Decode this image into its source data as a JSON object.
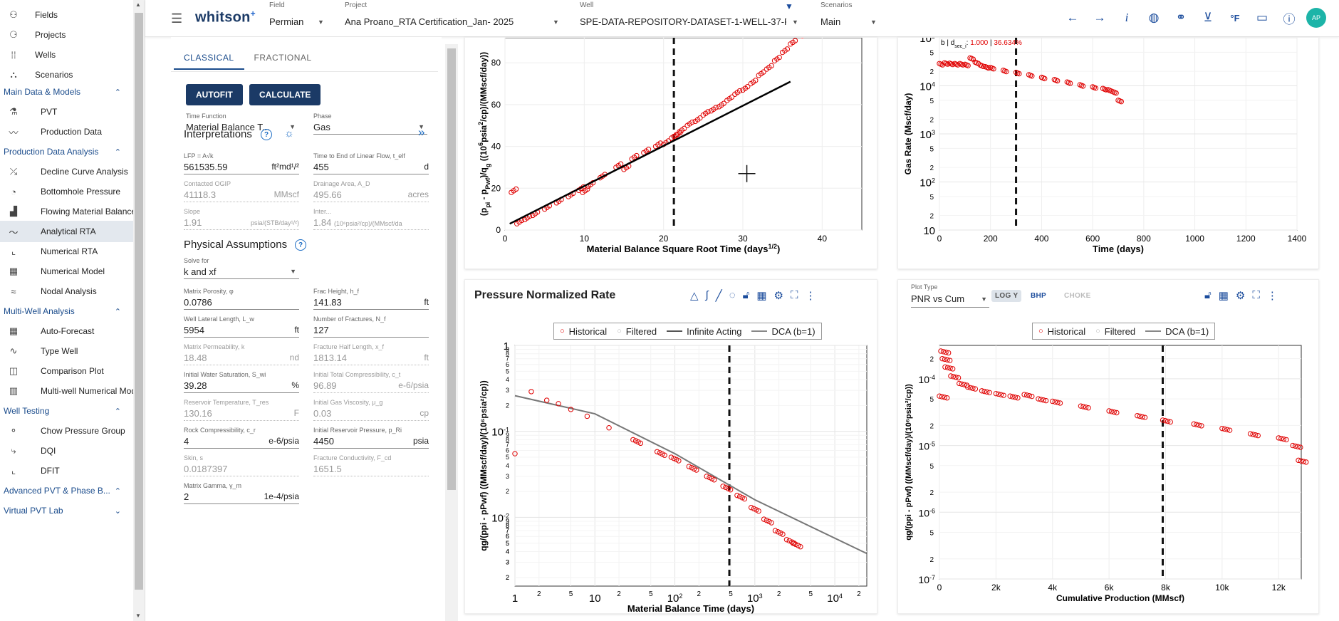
{
  "nav": {
    "top": [
      {
        "label": "Fields",
        "icon": "fields-icon"
      },
      {
        "label": "Projects",
        "icon": "projects-icon"
      },
      {
        "label": "Wells",
        "icon": "wells-icon"
      },
      {
        "label": "Scenarios",
        "icon": "scenarios-icon"
      }
    ],
    "sections": [
      {
        "label": "Main Data & Models",
        "items": [
          "PVT",
          "Production Data"
        ]
      },
      {
        "label": "Production Data Analysis",
        "items": [
          "Decline Curve Analysis",
          "Bottomhole Pressure",
          "Flowing Material Balance",
          "Analytical RTA",
          "Numerical RTA",
          "Numerical Model",
          "Nodal Analysis"
        ]
      },
      {
        "label": "Multi-Well Analysis",
        "items": [
          "Auto-Forecast",
          "Type Well",
          "Comparison Plot",
          "Multi-well Numerical Mod..."
        ]
      },
      {
        "label": "Well Testing",
        "items": [
          "Chow Pressure Group",
          "DQI",
          "DFIT"
        ]
      },
      {
        "label": "Advanced PVT & Phase B...",
        "items": []
      },
      {
        "label": "Virtual PVT Lab",
        "items": []
      }
    ],
    "active": "Analytical RTA"
  },
  "topbar": {
    "logo": "whitson",
    "logo_plus": "+",
    "field_caption": "Field",
    "field_value": "Permian",
    "project_caption": "Project",
    "project_value": "Ana Proano_RTA Certification_Jan- 2025",
    "well_caption": "Well",
    "well_value": "SPE-DATA-REPOSITORY-DATASET-1-WELL-37-PI",
    "scenario_caption": "Scenarios",
    "scenario_value": "Main",
    "avatar": "AP",
    "icons": [
      "arrow-left-icon",
      "arrow-right-icon",
      "info-icon",
      "globe-icon",
      "link-icon",
      "download-icon",
      "fahrenheit-icon",
      "chat-icon",
      "help-icon"
    ]
  },
  "panel": {
    "tabs": [
      "CLASSICAL",
      "FRACTIONAL"
    ],
    "autofit": "AUTOFIT",
    "calculate": "CALCULATE",
    "time_function": {
      "cap": "Time Function",
      "val": "Material Balance T..."
    },
    "phase": {
      "cap": "Phase",
      "val": "Gas"
    },
    "interpretations": "Interpretations",
    "lfp": {
      "cap": "LFP = A√k",
      "val": "561535.59",
      "unit": "ft²md¹/²"
    },
    "telf": {
      "cap": "Time to End of Linear Flow, t_elf",
      "val": "455",
      "unit": "d"
    },
    "ogip": {
      "cap": "Contacted OGIP",
      "val": "41118.3",
      "unit": "MMscf"
    },
    "drainage": {
      "cap": "Drainage Area, A_D",
      "val": "495.66",
      "unit": "acres"
    },
    "slope": {
      "cap": "Slope",
      "val": "1.91",
      "unit": "psia/(STB/day¹/²)"
    },
    "intercept": {
      "cap": "Inter...",
      "val": "1.84",
      "unit": "(10⁶psia²/cp)/(MMscf/da"
    },
    "physical": "Physical Assumptions",
    "solve_for": {
      "cap": "Solve for",
      "val": "k and xf"
    },
    "porosity": {
      "cap": "Matrix Porosity, φ",
      "val": "0.0786",
      "unit": ""
    },
    "frac_height": {
      "cap": "Frac Height, h_f",
      "val": "141.83",
      "unit": "ft"
    },
    "lateral": {
      "cap": "Well Lateral Length, L_w",
      "val": "5954",
      "unit": "ft"
    },
    "nfrac": {
      "cap": "Number of Fractures, N_f",
      "val": "127",
      "unit": ""
    },
    "perm": {
      "cap": "Matrix Permeability, k",
      "val": "18.48",
      "unit": "nd"
    },
    "xf": {
      "cap": "Fracture Half Length, x_f",
      "val": "1813.14",
      "unit": "ft"
    },
    "swi": {
      "cap": "Initial Water Saturation, S_wi",
      "val": "39.28",
      "unit": "%"
    },
    "ct": {
      "cap": "Initial Total Compressibility, c_t",
      "val": "96.89",
      "unit": "e-6/psia"
    },
    "tres": {
      "cap": "Reservoir Temperature, T_res",
      "val": "130.16",
      "unit": "F"
    },
    "visc": {
      "cap": "Initial Gas Viscosity, μ_g",
      "val": "0.03",
      "unit": "cp"
    },
    "cr": {
      "cap": "Rock Compressibility, c_r",
      "val": "4",
      "unit": "e-6/psia"
    },
    "pri": {
      "cap": "Initial Reservoir Pressure, p_Ri",
      "val": "4450",
      "unit": "psia"
    },
    "skin": {
      "cap": "Skin, s",
      "val": "0.0187397",
      "unit": ""
    },
    "fcd": {
      "cap": "Fracture Conductivity, F_cd",
      "val": "1651.5",
      "unit": ""
    },
    "gamma": {
      "cap": "Matrix Gamma, γ_m",
      "val": "2",
      "unit": "1e-4/psia"
    }
  },
  "chart_data": [
    {
      "type": "scatter",
      "id": "sqrt-time",
      "xlabel": "Material Balance Square Root Time (days1/2)",
      "ylabel": "(ppi - pPwf)/qg ((10⁶psia²/cp)/(MMscf/day))",
      "xlim": [
        0,
        45
      ],
      "ylim": [
        0,
        92
      ],
      "xticks": [
        0,
        10,
        20,
        30,
        40
      ],
      "yticks": [
        0,
        20,
        40,
        60,
        80
      ],
      "vline": 21.3,
      "series": [
        {
          "name": "Historical",
          "color": "#e00000",
          "x": [
            0.8,
            1.5,
            2.5,
            3.5,
            5,
            6.5,
            8,
            9.3,
            9.8,
            10.5,
            12,
            14,
            15,
            16,
            17.5,
            19,
            20,
            21,
            21.5,
            22,
            23,
            24,
            25,
            26,
            27,
            28,
            29,
            30,
            31,
            32,
            33,
            34,
            35,
            36,
            37.5
          ],
          "y": [
            18,
            3,
            5,
            7,
            10,
            13,
            16,
            19,
            18,
            21,
            25,
            30,
            29,
            34,
            37,
            40,
            41,
            44,
            45,
            47,
            50,
            52,
            55,
            57,
            59,
            62,
            65,
            67,
            70,
            74,
            77,
            81,
            85,
            89,
            93
          ]
        },
        {
          "name": "Fit",
          "color": "#000000",
          "x": [
            0.6,
            36
          ],
          "y": [
            3,
            71
          ]
        }
      ]
    },
    {
      "type": "scatter",
      "id": "gas-rate",
      "xlabel": "Time (days)",
      "ylabel": "Gas Rate (Mscf/day)",
      "annotation_prefix": "b | d",
      "annotation_sub": "sec_i",
      "annotation_b": "1.000",
      "annotation_d": "36.634%",
      "xlim": [
        0,
        1400
      ],
      "ylim_log": [
        1,
        5
      ],
      "xticks": [
        0,
        200,
        400,
        600,
        800,
        1000,
        1200,
        1400
      ],
      "vline": 300,
      "series": [
        {
          "name": "Historical",
          "color": "#e00000",
          "x": [
            0,
            20,
            40,
            60,
            80,
            100,
            120,
            140,
            160,
            180,
            200,
            250,
            300,
            350,
            400,
            450,
            500,
            550,
            600,
            640,
            660,
            680,
            700
          ],
          "y": [
            29000,
            30000,
            29500,
            29000,
            29000,
            28000,
            38000,
            31000,
            27000,
            25000,
            24000,
            21000,
            19000,
            17000,
            15000,
            13500,
            12000,
            10500,
            9500,
            8800,
            8300,
            7500,
            5000
          ]
        }
      ]
    },
    {
      "type": "scatter",
      "id": "pnr",
      "title": "Pressure Normalized Rate",
      "xlabel": "Material Balance Time (days)",
      "ylabel": "qg/(ppi - pPwf) ((MMscf/day)/(10⁶psia²/cp))",
      "legend": [
        "Historical",
        "Filtered",
        "Infinite Acting",
        "DCA (b=1)"
      ],
      "xlim_log": [
        0,
        4.4
      ],
      "ylim_log": [
        -2.8,
        0
      ],
      "vline": 480,
      "series": [
        {
          "name": "Historical",
          "color": "#e00000",
          "x": [
            1,
            1.6,
            2.5,
            3.5,
            5,
            8,
            15,
            30,
            60,
            90,
            150,
            250,
            400,
            600,
            900,
            1300,
            1800,
            2500,
            3000
          ],
          "y": [
            0.055,
            0.29,
            0.23,
            0.21,
            0.18,
            0.15,
            0.11,
            0.08,
            0.058,
            0.05,
            0.039,
            0.03,
            0.023,
            0.018,
            0.013,
            0.0095,
            0.007,
            0.0055,
            0.005
          ]
        },
        {
          "name": "DCA (b=1)",
          "color": "#777777",
          "x": [
            1,
            10,
            100,
            1000,
            25000
          ],
          "y": [
            0.26,
            0.16,
            0.055,
            0.016,
            0.0038
          ]
        }
      ]
    },
    {
      "type": "scatter",
      "id": "pnr-cum",
      "plot_type_caption": "Plot Type",
      "plot_type_value": "PNR vs Cum",
      "toggles": [
        "LOG Y",
        "BHP",
        "CHOKE"
      ],
      "xlabel": "Cumulative Production (MMscf)",
      "ylabel": "qg/(ppi - pPwf) ((MMscf/day)/(10⁶psia²/cp))",
      "legend": [
        "Historical",
        "Filtered",
        "DCA (b=1)"
      ],
      "xlim": [
        0,
        12800
      ],
      "ylim_log": [
        -7,
        -3.5
      ],
      "xticks": [
        0,
        2000,
        4000,
        6000,
        8000,
        10000,
        12000
      ],
      "vline": 7900,
      "series": [
        {
          "name": "Historical",
          "color": "#e00000",
          "x": [
            0,
            50,
            100,
            200,
            400,
            700,
            1000,
            1500,
            2000,
            2500,
            3000,
            3500,
            4000,
            5000,
            6000,
            7000,
            7900,
            9000,
            10000,
            11000,
            12000,
            12500,
            12700
          ],
          "y": [
            5.5e-05,
            0.00026,
            0.0002,
            0.00015,
            0.00011,
            8.5e-05,
            7.5e-05,
            6.6e-05,
            6e-05,
            5.5e-05,
            5.8e-05,
            5e-05,
            4.6e-05,
            3.9e-05,
            3.3e-05,
            2.8e-05,
            2.4e-05,
            2.1e-05,
            1.8e-05,
            1.5e-05,
            1.3e-05,
            1e-05,
            6e-06
          ]
        }
      ]
    }
  ]
}
